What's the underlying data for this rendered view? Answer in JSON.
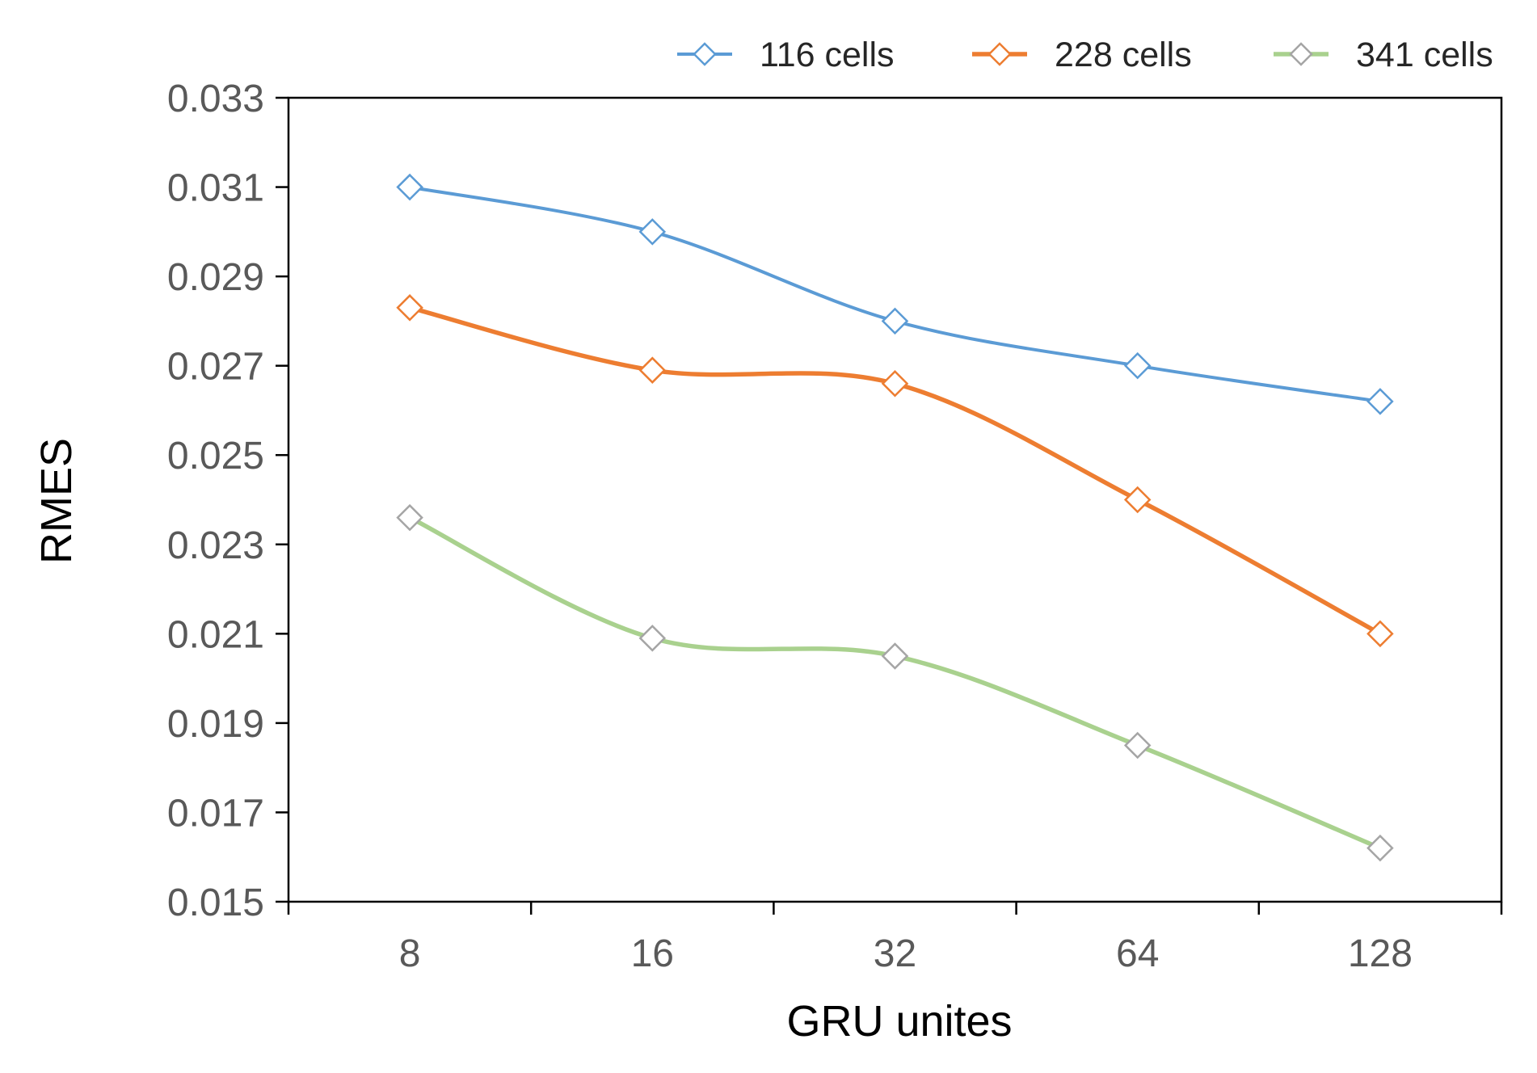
{
  "chart_data": {
    "type": "line",
    "xlabel": "GRU unites",
    "ylabel": "RMES",
    "categories": [
      "8",
      "16",
      "32",
      "64",
      "128"
    ],
    "ylim": [
      0.015,
      0.033
    ],
    "yticks": [
      "0.015",
      "0.017",
      "0.019",
      "0.021",
      "0.023",
      "0.025",
      "0.027",
      "0.029",
      "0.031",
      "0.033"
    ],
    "grid": false,
    "legend_position": "top",
    "marker": "diamond-open",
    "smooth": true,
    "series": [
      {
        "name": "116 cells",
        "color": "#5b9bd5",
        "marker_color": "#5b9bd5",
        "values": [
          0.031,
          0.03,
          0.028,
          0.027,
          0.0262
        ]
      },
      {
        "name": "228 cells",
        "color": "#ed7d31",
        "marker_color": "#ed7d31",
        "values": [
          0.0283,
          0.0269,
          0.0266,
          0.024,
          0.021
        ]
      },
      {
        "name": "341 cells",
        "color": "#a9d18e",
        "marker_color": "#a5a5a5",
        "values": [
          0.0236,
          0.0209,
          0.0205,
          0.0185,
          0.0162
        ]
      }
    ]
  }
}
